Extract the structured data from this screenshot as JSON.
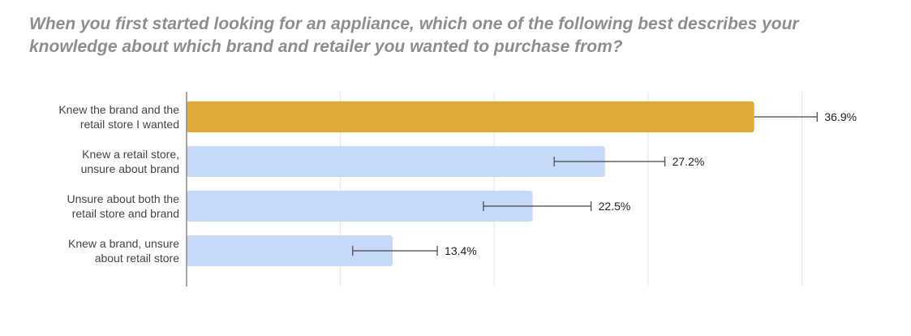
{
  "chart_data": {
    "type": "bar",
    "orientation": "horizontal",
    "title": "When you first started looking for an appliance, which one of the following best describes your knowledge about which brand and retailer you wanted to purchase from?",
    "categories": [
      [
        "Knew the brand and the",
        "retail store I wanted"
      ],
      [
        "Knew a retail store,",
        "unsure about brand"
      ],
      [
        "Unsure about both the",
        "retail store and brand"
      ],
      [
        "Knew a brand, unsure",
        "about retail store"
      ]
    ],
    "values": [
      36.9,
      27.2,
      22.5,
      13.4
    ],
    "value_labels": [
      "36.9%",
      "27.2%",
      "22.5%",
      "13.4%"
    ],
    "error_bars": [
      [
        36.9,
        41.0
      ],
      [
        23.9,
        31.1
      ],
      [
        19.3,
        26.3
      ],
      [
        10.8,
        16.3
      ]
    ],
    "xlim": [
      0,
      40
    ],
    "grid": true,
    "legend": "none",
    "colors": {
      "highlight": "#e2aa38",
      "default": "#c6d9f8",
      "error_bar": "#444444",
      "axis": "#888888",
      "grid": "#e3e3e3"
    }
  }
}
